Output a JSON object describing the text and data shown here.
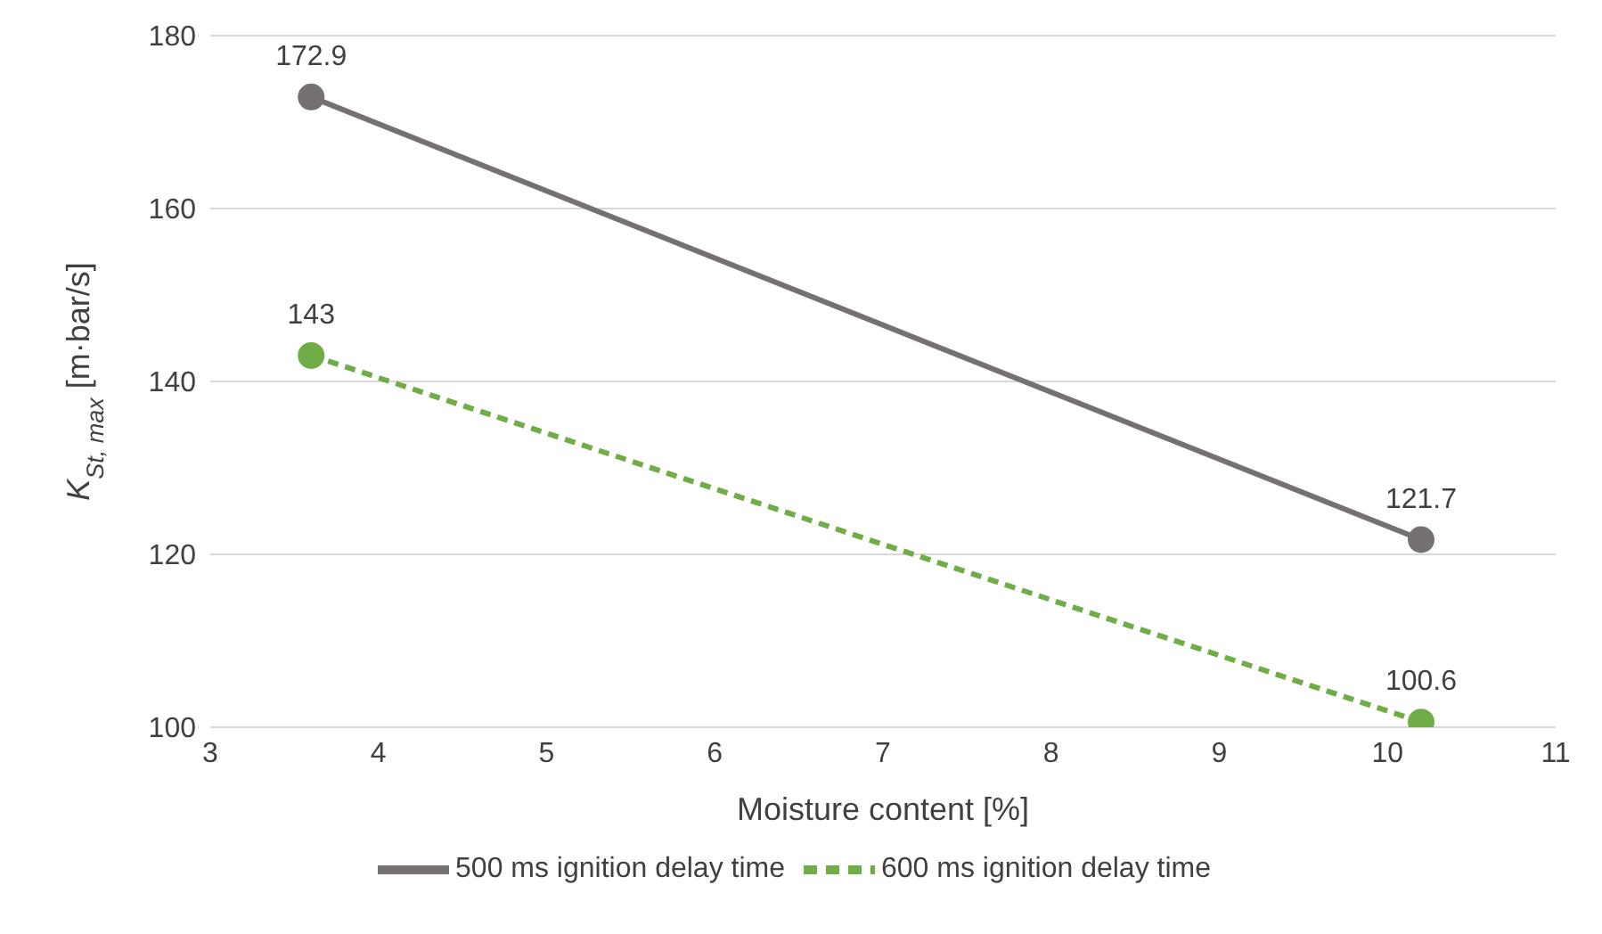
{
  "chart_data": {
    "type": "line",
    "xlabel": "Moisture content [%]",
    "ylabel": "K$_{St, max}$ [m·bar/s]",
    "x": [
      3.6,
      10.2
    ],
    "series": [
      {
        "name": "500 ms ignition delay time",
        "color": "#767171",
        "values": [
          172.9,
          121.7
        ],
        "line_style": "solid"
      },
      {
        "name": "600 ms ignition delay time",
        "color": "#70ad47",
        "values": [
          143,
          100.6
        ],
        "line_style": "dashed"
      }
    ],
    "xlim": [
      3,
      11
    ],
    "xticks": [
      3,
      4,
      5,
      6,
      7,
      8,
      9,
      10,
      11
    ],
    "ylim": [
      100,
      180
    ],
    "yticks": [
      100,
      120,
      140,
      160,
      180
    ],
    "grid": "y",
    "legend": "bottom",
    "marker": "circle",
    "data_labels": true
  }
}
